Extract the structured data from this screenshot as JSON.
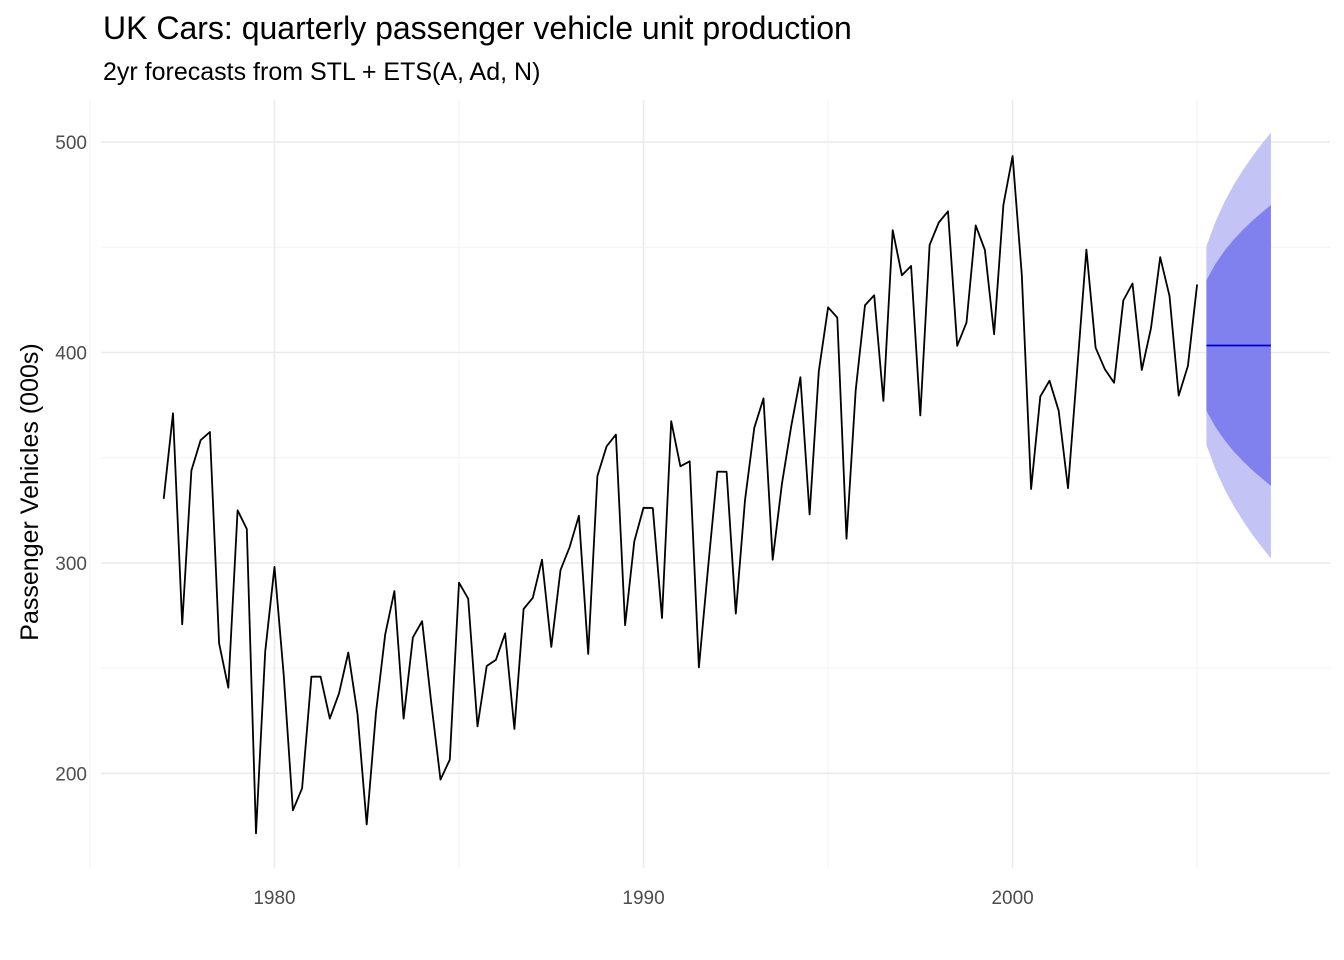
{
  "chart_data": {
    "type": "line",
    "title": "UK Cars: quarterly passenger vehicle unit production",
    "subtitle": "2yr forecasts from STL + ETS(A, Ad, N)",
    "xlabel": "",
    "ylabel": "Passenger Vehicles (000s)",
    "xlim": [
      1975.3,
      2008.6
    ],
    "ylim": [
      155,
      520
    ],
    "x_ticks": [
      1980,
      1990,
      2000
    ],
    "y_ticks": [
      200,
      300,
      400,
      500
    ],
    "grid": true,
    "colors": {
      "actual": "#000000",
      "forecast": "#0000cc",
      "pi80": "#8080ef",
      "pi95": "#c3c3f6",
      "grid_major": "#ebebeb",
      "grid_minor": "#f5f5f5"
    },
    "series": [
      {
        "x_start": 1977.0,
        "step": 0.25,
        "values": [
          330.4,
          371.1,
          270.8,
          343.9,
          358.3,
          362.2,
          261.8,
          240.7,
          325.0,
          316.1,
          171.5,
          257.8,
          298.1,
          246.8,
          182.4,
          192.9,
          245.9,
          245.9,
          226.0,
          238.0,
          257.4,
          228.2,
          175.7,
          229.0,
          266.0,
          286.6,
          226.0,
          264.6,
          272.3,
          233.3,
          197.0,
          206.5,
          290.6,
          283.0,
          222.3,
          251.0,
          253.9,
          266.5,
          221.1,
          278.1,
          283.4,
          301.5,
          260.1,
          296.6,
          307.6,
          322.4,
          256.7,
          341.3,
          355.4,
          361.0,
          270.4,
          310.2,
          326.2,
          326.1,
          273.8,
          367.4,
          345.9,
          348.3,
          250.4,
          297.9,
          343.4,
          343.3,
          275.9,
          329.8,
          364.2,
          378.2,
          301.5,
          337.5,
          364.9,
          388.2,
          323.0,
          391.1,
          421.5,
          416.6,
          311.5,
          382.1,
          422.5,
          427.2,
          377.0,
          458.1,
          436.7,
          441.1,
          370.1,
          451.1,
          461.8,
          467.1,
          403.2,
          414.2,
          460.4,
          448.7,
          408.7,
          470.2,
          493.4,
          436.9,
          335.1,
          379.1,
          386.6,
          372.3,
          335.5,
          392.0,
          448.9,
          402.3,
          392.0,
          385.6,
          424.7,
          432.8,
          391.7,
          411.6,
          445.3,
          426.9,
          379.5,
          393.6,
          432.3
        ]
      }
    ],
    "forecast": {
      "x_start": 2005.25,
      "step": 0.25,
      "mean": [
        403.3,
        403.3,
        403.3,
        403.3,
        403.3,
        403.3,
        403.3,
        403.3
      ],
      "lo80": [
        372.3,
        364.5,
        358.2,
        352.9,
        348.2,
        344.0,
        340.2,
        336.6
      ],
      "hi80": [
        434.3,
        442.2,
        448.5,
        453.8,
        458.5,
        462.7,
        466.5,
        470.1
      ],
      "lo95": [
        356.1,
        344.4,
        334.8,
        326.8,
        319.8,
        313.4,
        307.6,
        302.2
      ],
      "hi95": [
        450.5,
        462.3,
        471.9,
        479.9,
        486.9,
        493.3,
        499.1,
        504.5
      ]
    }
  }
}
